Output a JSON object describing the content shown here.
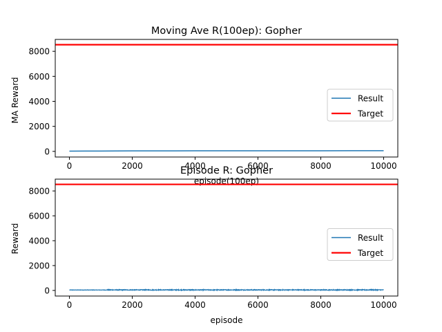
{
  "colors": {
    "result": "#1f77b4",
    "target": "#ff0000",
    "axes": "#000000",
    "legend_border": "#cccccc"
  },
  "chart_data": [
    {
      "type": "line",
      "title": "Moving Ave R(100ep): Gopher",
      "xlabel": "episode(100ep)",
      "ylabel": "MA Reward",
      "xlim": [
        -450,
        10450
      ],
      "ylim": [
        -450,
        8950
      ],
      "xticks": [
        0,
        2000,
        4000,
        6000,
        8000,
        10000
      ],
      "yticks": [
        0,
        2000,
        4000,
        6000,
        8000
      ],
      "grid": false,
      "legend": {
        "placement": "center-right",
        "entries": [
          "Result",
          "Target"
        ]
      },
      "series": [
        {
          "name": "Result",
          "kind": "line",
          "x": [
            0,
            500,
            1000,
            1500,
            2000,
            3000,
            4000,
            5000,
            6000,
            7000,
            8000,
            9000,
            10000
          ],
          "values": [
            20,
            25,
            30,
            35,
            40,
            42,
            45,
            46,
            48,
            50,
            50,
            52,
            55
          ]
        },
        {
          "name": "Target",
          "kind": "hline",
          "value": 8530
        }
      ]
    },
    {
      "type": "line",
      "title": "Episode R: Gopher",
      "xlabel": "episode",
      "ylabel": "Reward",
      "xlim": [
        -450,
        10450
      ],
      "ylim": [
        -450,
        8950
      ],
      "xticks": [
        0,
        2000,
        4000,
        6000,
        8000,
        10000
      ],
      "yticks": [
        0,
        2000,
        4000,
        6000,
        8000
      ],
      "grid": false,
      "legend": {
        "placement": "center-right",
        "entries": [
          "Result",
          "Target"
        ]
      },
      "series": [
        {
          "name": "Result",
          "kind": "noisy",
          "x_range": [
            0,
            10000
          ],
          "base": 30,
          "amplitude": 60
        },
        {
          "name": "Target",
          "kind": "hline",
          "value": 8530
        }
      ]
    }
  ]
}
